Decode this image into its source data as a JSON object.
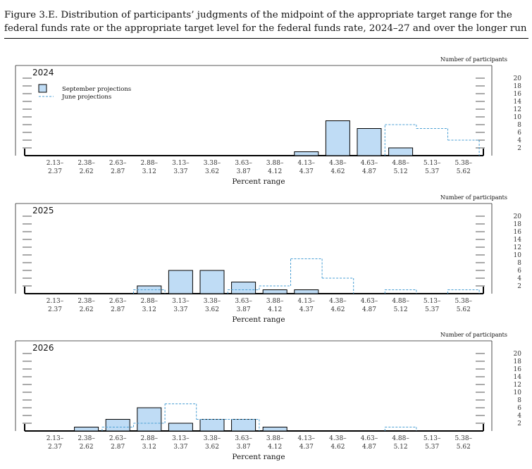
{
  "figure": {
    "title": "Figure 3.E. Distribution of participants’ judgments of the midpoint of the appropriate target range for the federal funds rate or the appropriate target level for the federal funds rate, 2024–27 and over the longer run"
  },
  "colors": {
    "september_fill": "#bfdcf5",
    "september_stroke": "#000000",
    "june_stroke": "#4a9fd4"
  },
  "chart_data": [
    {
      "type": "bar",
      "title": "2024",
      "ylabel": "Number of participants",
      "xlabel": "Percent range",
      "ylim": [
        0,
        20
      ],
      "yticks": [
        "2",
        "4",
        "6",
        "8",
        "10",
        "12",
        "14",
        "16",
        "18",
        "20"
      ],
      "legend": {
        "position": "top-left",
        "entries": [
          "September projections",
          "June projections"
        ]
      },
      "categories": [
        {
          "top": "2.13–",
          "bottom": "2.37"
        },
        {
          "top": "2.38–",
          "bottom": "2.62"
        },
        {
          "top": "2.63–",
          "bottom": "2.87"
        },
        {
          "top": "2.88–",
          "bottom": "3.12"
        },
        {
          "top": "3.13–",
          "bottom": "3.37"
        },
        {
          "top": "3.38–",
          "bottom": "3.62"
        },
        {
          "top": "3.63–",
          "bottom": "3.87"
        },
        {
          "top": "3.88–",
          "bottom": "4.12"
        },
        {
          "top": "4.13–",
          "bottom": "4.37"
        },
        {
          "top": "4.38–",
          "bottom": "4.62"
        },
        {
          "top": "4.63–",
          "bottom": "4.87"
        },
        {
          "top": "4.88–",
          "bottom": "5.12"
        },
        {
          "top": "5.13–",
          "bottom": "5.37"
        },
        {
          "top": "5.38–",
          "bottom": "5.62"
        }
      ],
      "series": [
        {
          "name": "September projections",
          "style": "solid",
          "values": [
            0,
            0,
            0,
            0,
            0,
            0,
            0,
            0,
            1,
            9,
            7,
            2,
            0,
            0
          ]
        },
        {
          "name": "June projections",
          "style": "dashed",
          "values": [
            0,
            0,
            0,
            0,
            0,
            0,
            0,
            0,
            0,
            0,
            0,
            8,
            7,
            4
          ]
        }
      ]
    },
    {
      "type": "bar",
      "title": "2025",
      "ylabel": "Number of participants",
      "xlabel": "Percent range",
      "ylim": [
        0,
        20
      ],
      "yticks": [
        "2",
        "4",
        "6",
        "8",
        "10",
        "12",
        "14",
        "16",
        "18",
        "20"
      ],
      "categories": [
        {
          "top": "2.13–",
          "bottom": "2.37"
        },
        {
          "top": "2.38–",
          "bottom": "2.62"
        },
        {
          "top": "2.63–",
          "bottom": "2.87"
        },
        {
          "top": "2.88–",
          "bottom": "3.12"
        },
        {
          "top": "3.13–",
          "bottom": "3.37"
        },
        {
          "top": "3.38–",
          "bottom": "3.62"
        },
        {
          "top": "3.63–",
          "bottom": "3.87"
        },
        {
          "top": "3.88–",
          "bottom": "4.12"
        },
        {
          "top": "4.13–",
          "bottom": "4.37"
        },
        {
          "top": "4.38–",
          "bottom": "4.62"
        },
        {
          "top": "4.63–",
          "bottom": "4.87"
        },
        {
          "top": "4.88–",
          "bottom": "5.12"
        },
        {
          "top": "5.13–",
          "bottom": "5.37"
        },
        {
          "top": "5.38–",
          "bottom": "5.62"
        }
      ],
      "series": [
        {
          "name": "September projections",
          "style": "solid",
          "values": [
            0,
            0,
            0,
            2,
            6,
            6,
            3,
            1,
            1,
            0,
            0,
            0,
            0,
            0
          ]
        },
        {
          "name": "June projections",
          "style": "dashed",
          "values": [
            0,
            0,
            0,
            1,
            0,
            0,
            1,
            2,
            9,
            4,
            0,
            1,
            0,
            1
          ]
        }
      ]
    },
    {
      "type": "bar",
      "title": "2026",
      "ylabel": "Number of participants",
      "xlabel": "Percent range",
      "ylim": [
        0,
        20
      ],
      "yticks": [
        "2",
        "4",
        "6",
        "8",
        "10",
        "12",
        "14",
        "16",
        "18",
        "20"
      ],
      "categories": [
        {
          "top": "2.13–",
          "bottom": "2.37"
        },
        {
          "top": "2.38–",
          "bottom": "2.62"
        },
        {
          "top": "2.63–",
          "bottom": "2.87"
        },
        {
          "top": "2.88–",
          "bottom": "3.12"
        },
        {
          "top": "3.13–",
          "bottom": "3.37"
        },
        {
          "top": "3.38–",
          "bottom": "3.62"
        },
        {
          "top": "3.63–",
          "bottom": "3.87"
        },
        {
          "top": "3.88–",
          "bottom": "4.12"
        },
        {
          "top": "4.13–",
          "bottom": "4.37"
        },
        {
          "top": "4.38–",
          "bottom": "4.62"
        },
        {
          "top": "4.63–",
          "bottom": "4.87"
        },
        {
          "top": "4.88–",
          "bottom": "5.12"
        },
        {
          "top": "5.13–",
          "bottom": "5.37"
        },
        {
          "top": "5.38–",
          "bottom": "5.62"
        }
      ],
      "series": [
        {
          "name": "September projections",
          "style": "solid",
          "values": [
            0,
            1,
            3,
            6,
            2,
            3,
            3,
            1,
            0,
            0,
            0,
            0,
            0,
            0
          ]
        },
        {
          "name": "June projections",
          "style": "dashed",
          "values": [
            0,
            0,
            1,
            2,
            7,
            3,
            3,
            0,
            0,
            0,
            0,
            1,
            0,
            0
          ]
        }
      ]
    }
  ]
}
